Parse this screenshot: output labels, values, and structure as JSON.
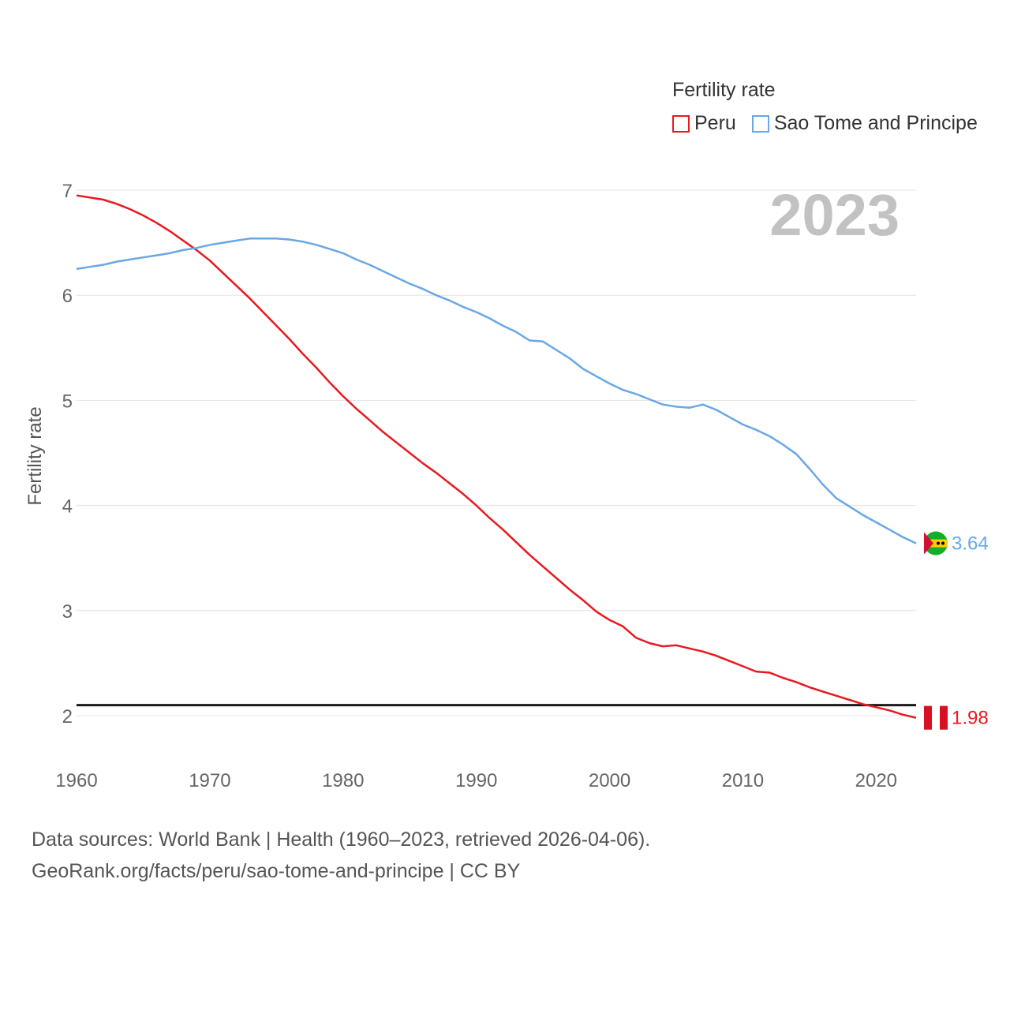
{
  "legend": {
    "title": "Fertility rate",
    "items": [
      {
        "label": "Peru",
        "color": "#e8191e"
      },
      {
        "label": "Sao Tome and Principe",
        "color": "#69a7e6"
      }
    ]
  },
  "year_label": "2023",
  "source": {
    "line1": "Data sources: World Bank | Health (1960–2023, retrieved 2026-04-06).",
    "line2": "GeoRank.org/facts/peru/sao-tome-and-principe | CC BY"
  },
  "chart_data": {
    "type": "line",
    "title": "Fertility rate",
    "xlabel": "",
    "ylabel": "Fertility rate",
    "xlim": [
      1960,
      2023
    ],
    "ylim": [
      1.75,
      7
    ],
    "x_ticks": [
      1960,
      1970,
      1980,
      1990,
      2000,
      2010,
      2020
    ],
    "y_ticks": [
      2,
      3,
      4,
      5,
      6,
      7
    ],
    "reference_line": 2.1,
    "grid": true,
    "legend_position": "top-right",
    "x": [
      1960,
      1961,
      1962,
      1963,
      1964,
      1965,
      1966,
      1967,
      1968,
      1969,
      1970,
      1971,
      1972,
      1973,
      1974,
      1975,
      1976,
      1977,
      1978,
      1979,
      1980,
      1981,
      1982,
      1983,
      1984,
      1985,
      1986,
      1987,
      1988,
      1989,
      1990,
      1991,
      1992,
      1993,
      1994,
      1995,
      1996,
      1997,
      1998,
      1999,
      2000,
      2001,
      2002,
      2003,
      2004,
      2005,
      2006,
      2007,
      2008,
      2009,
      2010,
      2011,
      2012,
      2013,
      2014,
      2015,
      2016,
      2017,
      2018,
      2019,
      2020,
      2021,
      2022,
      2023
    ],
    "series": [
      {
        "name": "Peru",
        "color": "#e8191e",
        "end_label": "1.98",
        "values": [
          6.95,
          6.93,
          6.91,
          6.87,
          6.82,
          6.76,
          6.69,
          6.61,
          6.52,
          6.43,
          6.33,
          6.21,
          6.09,
          5.97,
          5.84,
          5.71,
          5.58,
          5.44,
          5.31,
          5.17,
          5.04,
          4.92,
          4.81,
          4.7,
          4.6,
          4.5,
          4.4,
          4.31,
          4.21,
          4.11,
          4.0,
          3.88,
          3.77,
          3.65,
          3.53,
          3.42,
          3.31,
          3.2,
          3.1,
          2.99,
          2.91,
          2.85,
          2.74,
          2.69,
          2.66,
          2.67,
          2.64,
          2.61,
          2.57,
          2.52,
          2.47,
          2.42,
          2.41,
          2.36,
          2.32,
          2.27,
          2.23,
          2.19,
          2.15,
          2.11,
          2.08,
          2.05,
          2.01,
          1.98
        ]
      },
      {
        "name": "Sao Tome and Principe",
        "color": "#69a7e6",
        "end_label": "3.64",
        "values": [
          6.25,
          6.27,
          6.29,
          6.32,
          6.34,
          6.36,
          6.38,
          6.4,
          6.43,
          6.45,
          6.48,
          6.5,
          6.52,
          6.54,
          6.54,
          6.54,
          6.53,
          6.51,
          6.48,
          6.44,
          6.4,
          6.34,
          6.29,
          6.23,
          6.17,
          6.11,
          6.06,
          6.0,
          5.95,
          5.89,
          5.84,
          5.78,
          5.71,
          5.65,
          5.57,
          5.56,
          5.48,
          5.4,
          5.3,
          5.23,
          5.16,
          5.1,
          5.06,
          5.01,
          4.96,
          4.94,
          4.93,
          4.96,
          4.91,
          4.84,
          4.77,
          4.72,
          4.66,
          4.58,
          4.49,
          4.35,
          4.2,
          4.07,
          3.99,
          3.91,
          3.84,
          3.77,
          3.7,
          3.64
        ]
      }
    ]
  }
}
